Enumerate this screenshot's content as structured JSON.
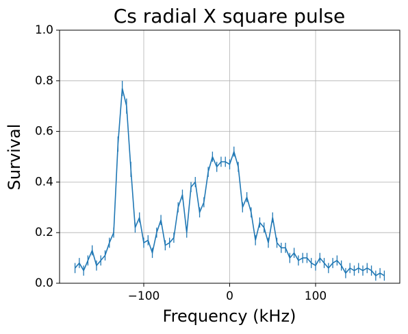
{
  "chart_data": {
    "type": "errorbar_line",
    "title": "Cs radial X square pulse",
    "xlabel": "Frequency (kHz)",
    "ylabel": "Survival",
    "x": [
      -180,
      -175,
      -170,
      -165,
      -160,
      -155,
      -150,
      -145,
      -140,
      -135,
      -130,
      -125,
      -120,
      -115,
      -110,
      -105,
      -100,
      -95,
      -90,
      -85,
      -80,
      -75,
      -70,
      -65,
      -60,
      -55,
      -50,
      -45,
      -40,
      -35,
      -30,
      -25,
      -20,
      -15,
      -10,
      -5,
      0,
      5,
      10,
      15,
      20,
      25,
      30,
      35,
      40,
      45,
      50,
      55,
      60,
      65,
      70,
      75,
      80,
      85,
      90,
      95,
      100,
      105,
      110,
      115,
      120,
      125,
      130,
      135,
      140,
      145,
      150,
      155,
      160,
      165,
      170,
      175,
      180
    ],
    "series": [
      {
        "color": "#1f77b4",
        "values": [
          0.06,
          0.08,
          0.05,
          0.09,
          0.13,
          0.07,
          0.09,
          0.11,
          0.16,
          0.2,
          0.55,
          0.77,
          0.7,
          0.45,
          0.22,
          0.26,
          0.16,
          0.17,
          0.12,
          0.2,
          0.25,
          0.15,
          0.16,
          0.18,
          0.3,
          0.35,
          0.2,
          0.38,
          0.4,
          0.28,
          0.32,
          0.44,
          0.5,
          0.46,
          0.48,
          0.48,
          0.47,
          0.52,
          0.46,
          0.3,
          0.34,
          0.28,
          0.17,
          0.24,
          0.22,
          0.16,
          0.26,
          0.16,
          0.14,
          0.14,
          0.1,
          0.12,
          0.09,
          0.1,
          0.1,
          0.08,
          0.07,
          0.1,
          0.08,
          0.06,
          0.08,
          0.09,
          0.07,
          0.04,
          0.06,
          0.05,
          0.06,
          0.05,
          0.06,
          0.05,
          0.03,
          0.04,
          0.03
        ],
        "errors": [
          0.02,
          0.02,
          0.02,
          0.02,
          0.02,
          0.02,
          0.02,
          0.02,
          0.02,
          0.02,
          0.03,
          0.03,
          0.03,
          0.03,
          0.02,
          0.02,
          0.02,
          0.02,
          0.02,
          0.02,
          0.02,
          0.02,
          0.02,
          0.02,
          0.02,
          0.02,
          0.02,
          0.02,
          0.02,
          0.02,
          0.02,
          0.02,
          0.02,
          0.02,
          0.02,
          0.02,
          0.02,
          0.02,
          0.02,
          0.02,
          0.02,
          0.02,
          0.02,
          0.02,
          0.02,
          0.02,
          0.02,
          0.02,
          0.02,
          0.02,
          0.02,
          0.02,
          0.02,
          0.02,
          0.02,
          0.02,
          0.02,
          0.02,
          0.02,
          0.02,
          0.02,
          0.02,
          0.02,
          0.02,
          0.02,
          0.02,
          0.02,
          0.02,
          0.02,
          0.02,
          0.02,
          0.02,
          0.02
        ]
      }
    ],
    "xlim": [
      -198,
      198
    ],
    "ylim": [
      0,
      1
    ],
    "xticks": [
      {
        "value": -100,
        "label": "−100"
      },
      0,
      100
    ],
    "yticks": [
      {
        "value": 0,
        "label": "0.0"
      },
      0.2,
      0.4,
      0.6,
      0.8,
      {
        "value": 1,
        "label": "1.0"
      }
    ],
    "grid": true
  }
}
